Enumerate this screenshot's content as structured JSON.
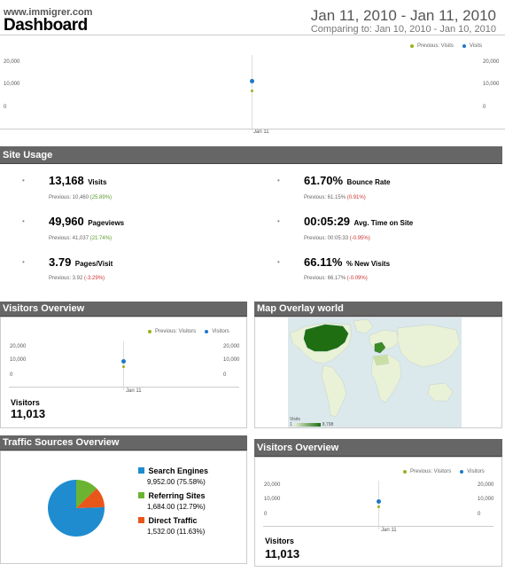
{
  "header": {
    "site": "www.immigrer.com",
    "title": "Dashboard",
    "date_range": "Jan 11, 2010 - Jan 11, 2010",
    "comparing": "Comparing to: Jan 10, 2010 - Jan 10, 2010"
  },
  "main_chart": {
    "legend": [
      "Previous: Visits",
      "Visits"
    ],
    "y_ticks": [
      "20,000",
      "10,000",
      "0"
    ],
    "x_label": "Jan 11",
    "colors": {
      "previous": "#9ab21c",
      "current": "#1f78c8"
    }
  },
  "site_usage": {
    "title": "Site Usage",
    "left": [
      {
        "value": "13,168",
        "label": "Visits",
        "prev_text": "Previous: 10,460",
        "change": "(25.89%)",
        "trend": "pos"
      },
      {
        "value": "49,960",
        "label": "Pageviews",
        "prev_text": "Previous: 41,037",
        "change": "(21.74%)",
        "trend": "pos"
      },
      {
        "value": "3.79",
        "label": "Pages/Visit",
        "prev_text": "Previous: 3.92",
        "change": "(-3.29%)",
        "trend": "neg"
      }
    ],
    "right": [
      {
        "value": "61.70%",
        "label": "Bounce Rate",
        "prev_text": "Previous: 61.15%",
        "change": "(0.91%)",
        "trend": "neg"
      },
      {
        "value": "00:05:29",
        "label": "Avg. Time on Site",
        "prev_text": "Previous: 00:05:33",
        "change": "(-0.95%)",
        "trend": "neg"
      },
      {
        "value": "66.11%",
        "label": "% New Visits",
        "prev_text": "Previous: 66.17%",
        "change": "(-0.09%)",
        "trend": "neg"
      }
    ]
  },
  "visitors_overview": {
    "title": "Visitors Overview",
    "legend": [
      "Previous: Visitors",
      "Visitors"
    ],
    "y_ticks": [
      "20,000",
      "10,000",
      "0"
    ],
    "x_label": "Jan 11",
    "visitors_label": "Visitors",
    "visitors_value": "11,013"
  },
  "map_overlay": {
    "title": "Map Overlay world",
    "legend_label": "Visits",
    "legend_min": "1",
    "legend_max": "8,798"
  },
  "traffic_sources": {
    "title": "Traffic Sources Overview",
    "items": [
      {
        "name": "Search Engines",
        "value": "9,952.00 (75.58%)",
        "color": "#1f8ccf"
      },
      {
        "name": "Referring Sites",
        "value": "1,684.00 (12.79%)",
        "color": "#6ab432"
      },
      {
        "name": "Direct Traffic",
        "value": "1,532.00 (11.63%)",
        "color": "#e8561a"
      }
    ]
  },
  "visitors_overview_2": {
    "title": "Visitors Overview",
    "legend": [
      "Previous: Visitors",
      "Visitors"
    ],
    "y_ticks": [
      "20,000",
      "10,000",
      "0"
    ],
    "x_label": "Jan 11",
    "visitors_label": "Visitors",
    "visitors_value": "11,013"
  }
}
